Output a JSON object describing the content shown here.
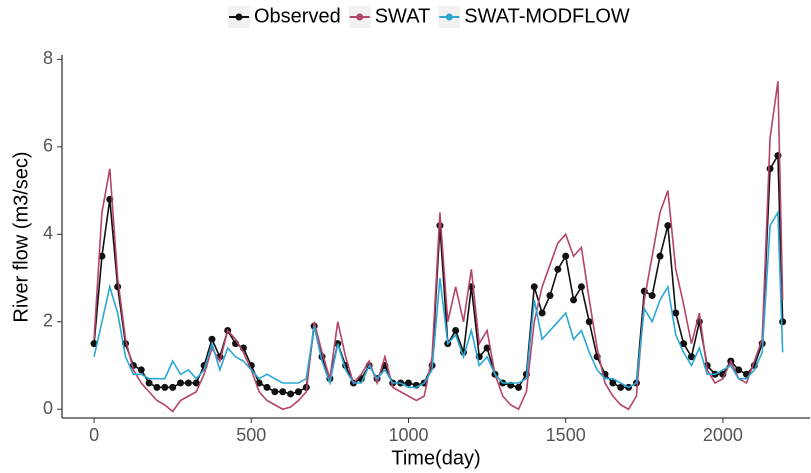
{
  "chart_data": {
    "type": "line",
    "x_label": "Time(day)",
    "y_label": "River flow (m3/sec)",
    "x": [
      0,
      25,
      50,
      75,
      100,
      125,
      150,
      175,
      200,
      225,
      250,
      275,
      300,
      325,
      350,
      375,
      400,
      425,
      450,
      475,
      500,
      525,
      550,
      575,
      600,
      625,
      650,
      675,
      700,
      725,
      750,
      775,
      800,
      825,
      850,
      875,
      900,
      925,
      950,
      975,
      1000,
      1025,
      1050,
      1075,
      1100,
      1125,
      1150,
      1175,
      1200,
      1225,
      1250,
      1275,
      1300,
      1325,
      1350,
      1375,
      1400,
      1425,
      1450,
      1475,
      1500,
      1525,
      1550,
      1575,
      1600,
      1625,
      1650,
      1675,
      1700,
      1725,
      1750,
      1775,
      1800,
      1825,
      1850,
      1875,
      1900,
      1925,
      1950,
      1975,
      2000,
      2025,
      2050,
      2075,
      2100,
      2125,
      2150,
      2175,
      2190
    ],
    "series": [
      {
        "name": "Observed",
        "color": "#111111",
        "markers": true,
        "values": [
          1.5,
          3.5,
          4.8,
          2.8,
          1.5,
          1.0,
          0.9,
          0.6,
          0.5,
          0.5,
          0.5,
          0.6,
          0.6,
          0.6,
          1.0,
          1.6,
          1.2,
          1.8,
          1.5,
          1.4,
          1.0,
          0.6,
          0.5,
          0.4,
          0.4,
          0.35,
          0.4,
          0.5,
          1.9,
          1.2,
          0.7,
          1.5,
          1.0,
          0.6,
          0.7,
          1.0,
          0.7,
          1.0,
          0.6,
          0.6,
          0.6,
          0.55,
          0.6,
          1.0,
          4.2,
          1.5,
          1.8,
          1.3,
          2.8,
          1.2,
          1.4,
          0.8,
          0.6,
          0.55,
          0.5,
          0.8,
          2.8,
          2.2,
          2.6,
          3.2,
          3.5,
          2.5,
          2.8,
          2.0,
          1.2,
          0.8,
          0.6,
          0.5,
          0.5,
          0.6,
          2.7,
          2.6,
          3.5,
          4.2,
          2.2,
          1.5,
          1.2,
          2.0,
          1.0,
          0.8,
          0.8,
          1.1,
          0.9,
          0.8,
          1.0,
          1.5,
          5.5,
          5.8,
          2.0
        ]
      },
      {
        "name": "SWAT",
        "color": "#b5446b",
        "markers": false,
        "values": [
          1.6,
          4.5,
          5.5,
          3.0,
          1.6,
          0.9,
          0.6,
          0.4,
          0.2,
          0.1,
          -0.05,
          0.2,
          0.3,
          0.4,
          0.8,
          1.4,
          1.1,
          1.8,
          1.6,
          1.3,
          0.9,
          0.4,
          0.2,
          0.1,
          0.0,
          0.05,
          0.2,
          0.4,
          2.0,
          1.3,
          0.7,
          2.0,
          1.2,
          0.6,
          0.8,
          1.1,
          0.6,
          1.2,
          0.5,
          0.4,
          0.3,
          0.2,
          0.3,
          1.2,
          4.5,
          2.0,
          2.8,
          2.0,
          3.2,
          1.5,
          1.8,
          0.8,
          0.3,
          0.1,
          0.0,
          0.4,
          2.0,
          2.8,
          3.3,
          3.8,
          4.0,
          3.5,
          3.7,
          2.5,
          1.4,
          0.6,
          0.3,
          0.1,
          0.0,
          0.3,
          2.5,
          3.5,
          4.5,
          5.0,
          3.2,
          2.4,
          1.5,
          2.2,
          0.9,
          0.6,
          0.7,
          1.1,
          0.7,
          0.6,
          1.1,
          1.6,
          6.2,
          7.5,
          2.5
        ]
      },
      {
        "name": "SWAT-MODFLOW",
        "color": "#2aa7d5",
        "markers": false,
        "values": [
          1.2,
          2.0,
          2.8,
          2.2,
          1.2,
          0.8,
          0.8,
          0.7,
          0.7,
          0.7,
          1.1,
          0.8,
          0.9,
          0.7,
          0.9,
          1.5,
          0.9,
          1.4,
          1.2,
          1.1,
          0.9,
          0.7,
          0.8,
          0.7,
          0.6,
          0.6,
          0.6,
          0.7,
          1.9,
          1.1,
          0.6,
          1.5,
          0.9,
          0.6,
          0.6,
          1.0,
          0.7,
          0.9,
          0.6,
          0.6,
          0.5,
          0.5,
          0.6,
          0.9,
          3.0,
          1.5,
          1.7,
          1.2,
          1.8,
          1.0,
          1.2,
          0.8,
          0.6,
          0.6,
          0.6,
          0.7,
          2.5,
          1.6,
          1.8,
          2.0,
          2.2,
          1.6,
          1.8,
          1.3,
          0.9,
          0.7,
          0.7,
          0.6,
          0.5,
          0.6,
          2.3,
          2.0,
          2.5,
          2.8,
          1.7,
          1.3,
          1.0,
          1.4,
          0.8,
          0.8,
          0.9,
          1.0,
          0.7,
          0.7,
          0.9,
          1.3,
          4.2,
          4.5,
          1.3
        ]
      }
    ],
    "xlim": [
      -102,
      2277
    ],
    "xticks": [
      0,
      500,
      1000,
      1500,
      2000
    ],
    "ylim": [
      -0.2,
      8.1
    ],
    "yticks": [
      0,
      2,
      4,
      6,
      8
    ],
    "grid": false,
    "legend": "top"
  }
}
